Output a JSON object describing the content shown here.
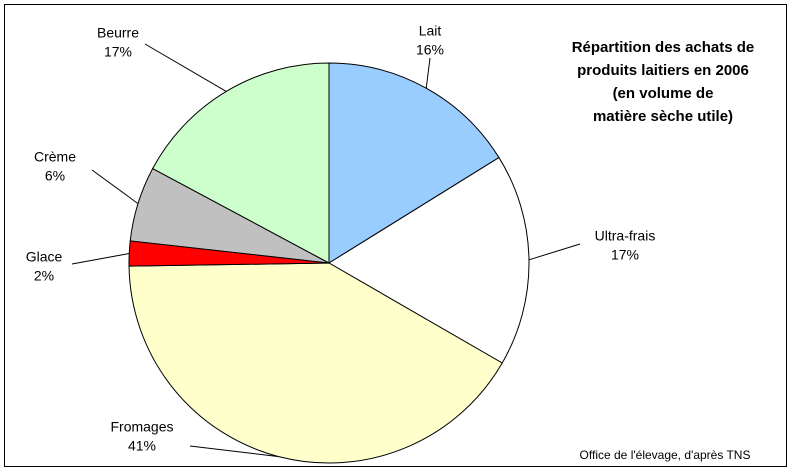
{
  "chart_data": {
    "type": "pie",
    "title": [
      "Répartition des achats de",
      "produits laitiers en 2006",
      "(en volume de",
      "matière sèche utile)"
    ],
    "categories": [
      "Lait",
      "Ultra-frais",
      "Fromages",
      "Glace",
      "Crème",
      "Beurre"
    ],
    "values": [
      16,
      17,
      41,
      2,
      6,
      17
    ],
    "value_labels": [
      "16%",
      "17%",
      "41%",
      "2%",
      "6%",
      "17%"
    ],
    "colors": [
      "#99ccff",
      "#ffffff",
      "#ffffcc",
      "#ff0000",
      "#c0c0c0",
      "#ccffcc"
    ],
    "source": "Office de l'élevage, d'après TNS"
  }
}
